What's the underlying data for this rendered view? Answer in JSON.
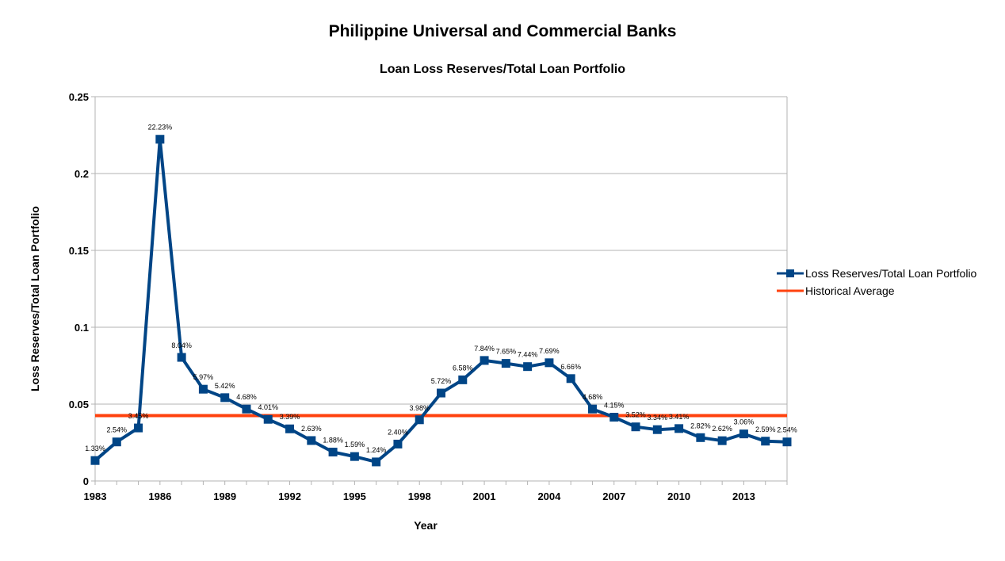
{
  "chart_data": {
    "type": "line",
    "title": "Philippine Universal and Commercial Banks",
    "subtitle": "Loan Loss Reserves/Total Loan Portfolio",
    "xlabel": "Year",
    "ylabel": "Loss Reserves/Total Loan Portfolio",
    "x": [
      1983,
      1984,
      1985,
      1986,
      1987,
      1988,
      1989,
      1990,
      1991,
      1992,
      1993,
      1994,
      1995,
      1996,
      1997,
      1998,
      1999,
      2000,
      2001,
      2002,
      2003,
      2004,
      2005,
      2006,
      2007,
      2008,
      2009,
      2010,
      2011,
      2012,
      2013,
      2014,
      2015
    ],
    "xlim": [
      1983,
      2015
    ],
    "xticks": [
      "1983",
      "1986",
      "1989",
      "1992",
      "1995",
      "1998",
      "2001",
      "2004",
      "2007",
      "2010",
      "2013"
    ],
    "ylim": [
      0,
      0.25
    ],
    "yticks": [
      "0",
      "0.05",
      "0.1",
      "0.15",
      "0.2",
      "0.25"
    ],
    "grid": "horizontal",
    "legend_position": "right",
    "series": [
      {
        "name": "Loss Reserves/Total Loan Portfolio",
        "color": "#004586",
        "marker": "square",
        "values": [
          0.0133,
          0.0254,
          0.0345,
          0.2223,
          0.0804,
          0.0597,
          0.0542,
          0.0468,
          0.0401,
          0.0339,
          0.0263,
          0.0188,
          0.0159,
          0.0124,
          0.024,
          0.0398,
          0.0572,
          0.0658,
          0.0784,
          0.0765,
          0.0744,
          0.0769,
          0.0666,
          0.0468,
          0.0415,
          0.0352,
          0.0334,
          0.0341,
          0.0282,
          0.0262,
          0.0306,
          0.0259,
          0.0254
        ],
        "labels": [
          "1.33%",
          "2.54%",
          "3.45%",
          "22.23%",
          "8.04%",
          "5.97%",
          "5.42%",
          "4.68%",
          "4.01%",
          "3.39%",
          "2.63%",
          "1.88%",
          "1.59%",
          "1.24%",
          "2.40%",
          "3.98%",
          "5.72%",
          "6.58%",
          "7.84%",
          "7.65%",
          "7.44%",
          "7.69%",
          "6.66%",
          "4.68%",
          "4.15%",
          "3.52%",
          "3.34%",
          "3.41%",
          "2.82%",
          "2.62%",
          "3.06%",
          "2.59%",
          "2.54%"
        ]
      },
      {
        "name": "Historical Average",
        "color": "#ff420e",
        "value": 0.0425
      }
    ]
  }
}
